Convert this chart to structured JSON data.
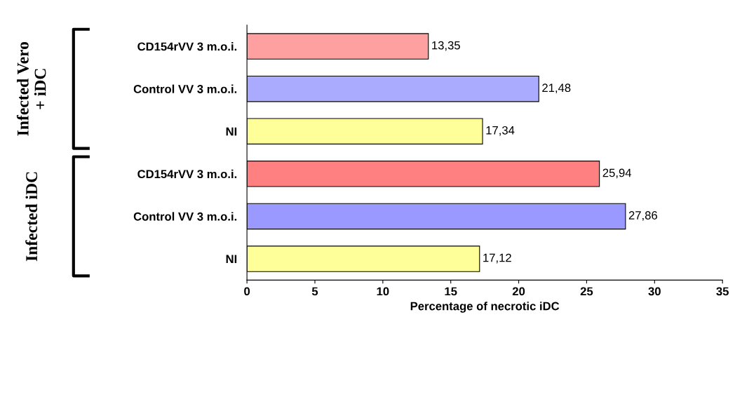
{
  "chart_data": {
    "type": "bar",
    "orientation": "horizontal",
    "xlabel": "Percentage of necrotic iDC",
    "categories": [
      "CD154rVV 3 m.o.i.",
      "Control VV 3 m.o.i.",
      "NI",
      "CD154rVV 3 m.o.i.",
      "Control VV 3 m.o.i.",
      "NI"
    ],
    "values": [
      13.35,
      21.48,
      17.34,
      25.94,
      27.86,
      17.12
    ],
    "value_labels": [
      "13,35",
      "21,48",
      "17,34",
      "25,94",
      "27,86",
      "17,12"
    ],
    "colors": [
      "#ffa0a0",
      "#aaaaff",
      "#ffff99",
      "#ff8080",
      "#9999ff",
      "#ffff99"
    ],
    "xlim": [
      0,
      35
    ],
    "xticks": [
      0,
      5,
      10,
      15,
      20,
      25,
      30,
      35
    ],
    "annotations": [
      "Infected Vero\n+ iDC",
      "Infected iDC"
    ],
    "grid": false
  }
}
